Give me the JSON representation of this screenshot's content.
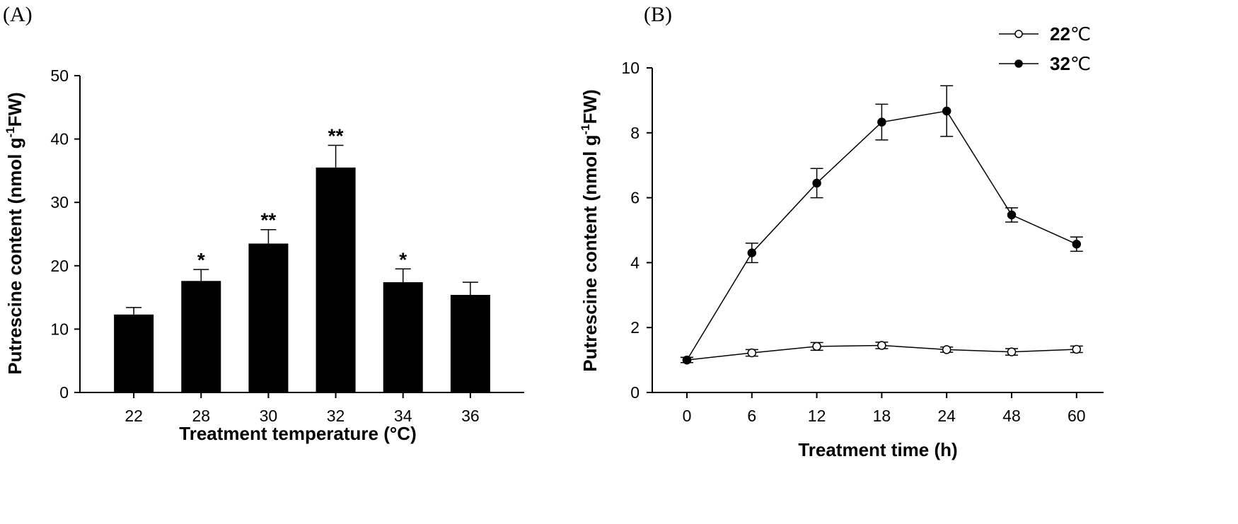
{
  "chart_data": [
    {
      "type": "bar",
      "panel_label": "(A)",
      "categories": [
        "22",
        "28",
        "30",
        "32",
        "34",
        "36"
      ],
      "values": [
        12.3,
        17.6,
        23.5,
        35.5,
        17.4,
        15.4
      ],
      "errors": [
        1.1,
        1.8,
        2.2,
        3.5,
        2.1,
        2.0
      ],
      "annotations": [
        "",
        "*",
        "**",
        "**",
        "*",
        ""
      ],
      "xlabel": "Treatment temperature (°C)",
      "ylabel_main": "Putrescine content (nmol g",
      "ylabel_sup": "-1",
      "ylabel_tail": "FW)",
      "ylim": [
        0,
        50
      ],
      "yticks": [
        "0",
        "10",
        "20",
        "30",
        "40",
        "50"
      ],
      "bar_color": "#000000",
      "grid": false
    },
    {
      "type": "line",
      "panel_label": "(B)",
      "x": [
        "0",
        "6",
        "12",
        "18",
        "24",
        "48",
        "60"
      ],
      "series": [
        {
          "name_value": "22",
          "name_unit": "℃",
          "marker": "open-circle",
          "values": [
            1.0,
            1.22,
            1.42,
            1.45,
            1.32,
            1.25,
            1.33
          ],
          "errors": [
            0.08,
            0.1,
            0.12,
            0.1,
            0.08,
            0.1,
            0.1
          ]
        },
        {
          "name_value": "32",
          "name_unit": "℃",
          "marker": "filled-circle",
          "values": [
            1.0,
            4.3,
            6.45,
            8.33,
            8.67,
            5.47,
            4.57
          ],
          "errors": [
            0.08,
            0.3,
            0.45,
            0.55,
            0.78,
            0.22,
            0.22
          ]
        }
      ],
      "xlabel": "Treatment time (h)",
      "ylabel_main": "Putrescine content (nmol g",
      "ylabel_sup": "-1",
      "ylabel_tail": "FW)",
      "ylim": [
        0,
        10
      ],
      "yticks": [
        "0",
        "2",
        "4",
        "6",
        "8",
        "10"
      ],
      "legend_position": "top-right",
      "grid": false
    }
  ]
}
